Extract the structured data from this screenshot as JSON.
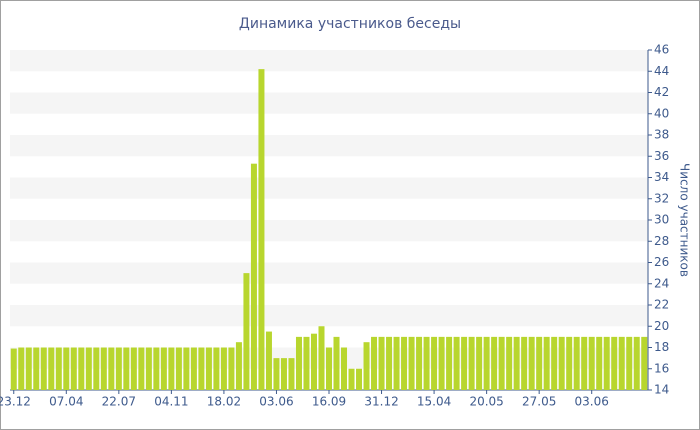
{
  "chart_data": {
    "type": "bar",
    "title": "Динамика участников беседы",
    "y_axis_label": "Число участников",
    "categories": [
      "23.12",
      null,
      null,
      null,
      null,
      null,
      null,
      "07.04",
      null,
      null,
      null,
      null,
      null,
      null,
      "22.07",
      null,
      null,
      null,
      null,
      null,
      null,
      "04.11",
      null,
      null,
      null,
      null,
      null,
      null,
      "18.02",
      null,
      null,
      null,
      null,
      null,
      null,
      "03.06",
      null,
      null,
      null,
      null,
      null,
      null,
      "16.09",
      null,
      null,
      null,
      null,
      null,
      null,
      "31.12",
      null,
      null,
      null,
      null,
      null,
      null,
      "15.04",
      null,
      null,
      null,
      null,
      null,
      null,
      "20.05",
      null,
      null,
      null,
      null,
      null,
      null,
      "27.05",
      null,
      null,
      null,
      null,
      null,
      null,
      "03.06",
      null,
      null,
      null,
      null,
      null,
      null,
      null
    ],
    "values": [
      17.9,
      18,
      18,
      18,
      18,
      18,
      18,
      18,
      18,
      18,
      18,
      18,
      18,
      18,
      18,
      18,
      18,
      18,
      18,
      18,
      18,
      18,
      18,
      18,
      18,
      18,
      18,
      18,
      18,
      18,
      18.5,
      25,
      35.3,
      44.2,
      19.5,
      17,
      17,
      17,
      19,
      19,
      19.3,
      20,
      18,
      19,
      18,
      16,
      16,
      18.5,
      19,
      19,
      19,
      19,
      19,
      19,
      19,
      19,
      19,
      19,
      19,
      19,
      19,
      19,
      19,
      19,
      19,
      19,
      19,
      19,
      19,
      19,
      19,
      19,
      19,
      19,
      19,
      19,
      19,
      19,
      19,
      19,
      19,
      19,
      19,
      19,
      19
    ],
    "color": "#b8d62e",
    "ylim": [
      14,
      46
    ],
    "yticks": [
      14,
      16,
      18,
      20,
      22,
      24,
      26,
      28,
      30,
      32,
      34,
      36,
      38,
      40,
      42,
      44,
      46
    ],
    "y_axis_position": "right",
    "grid": true
  }
}
